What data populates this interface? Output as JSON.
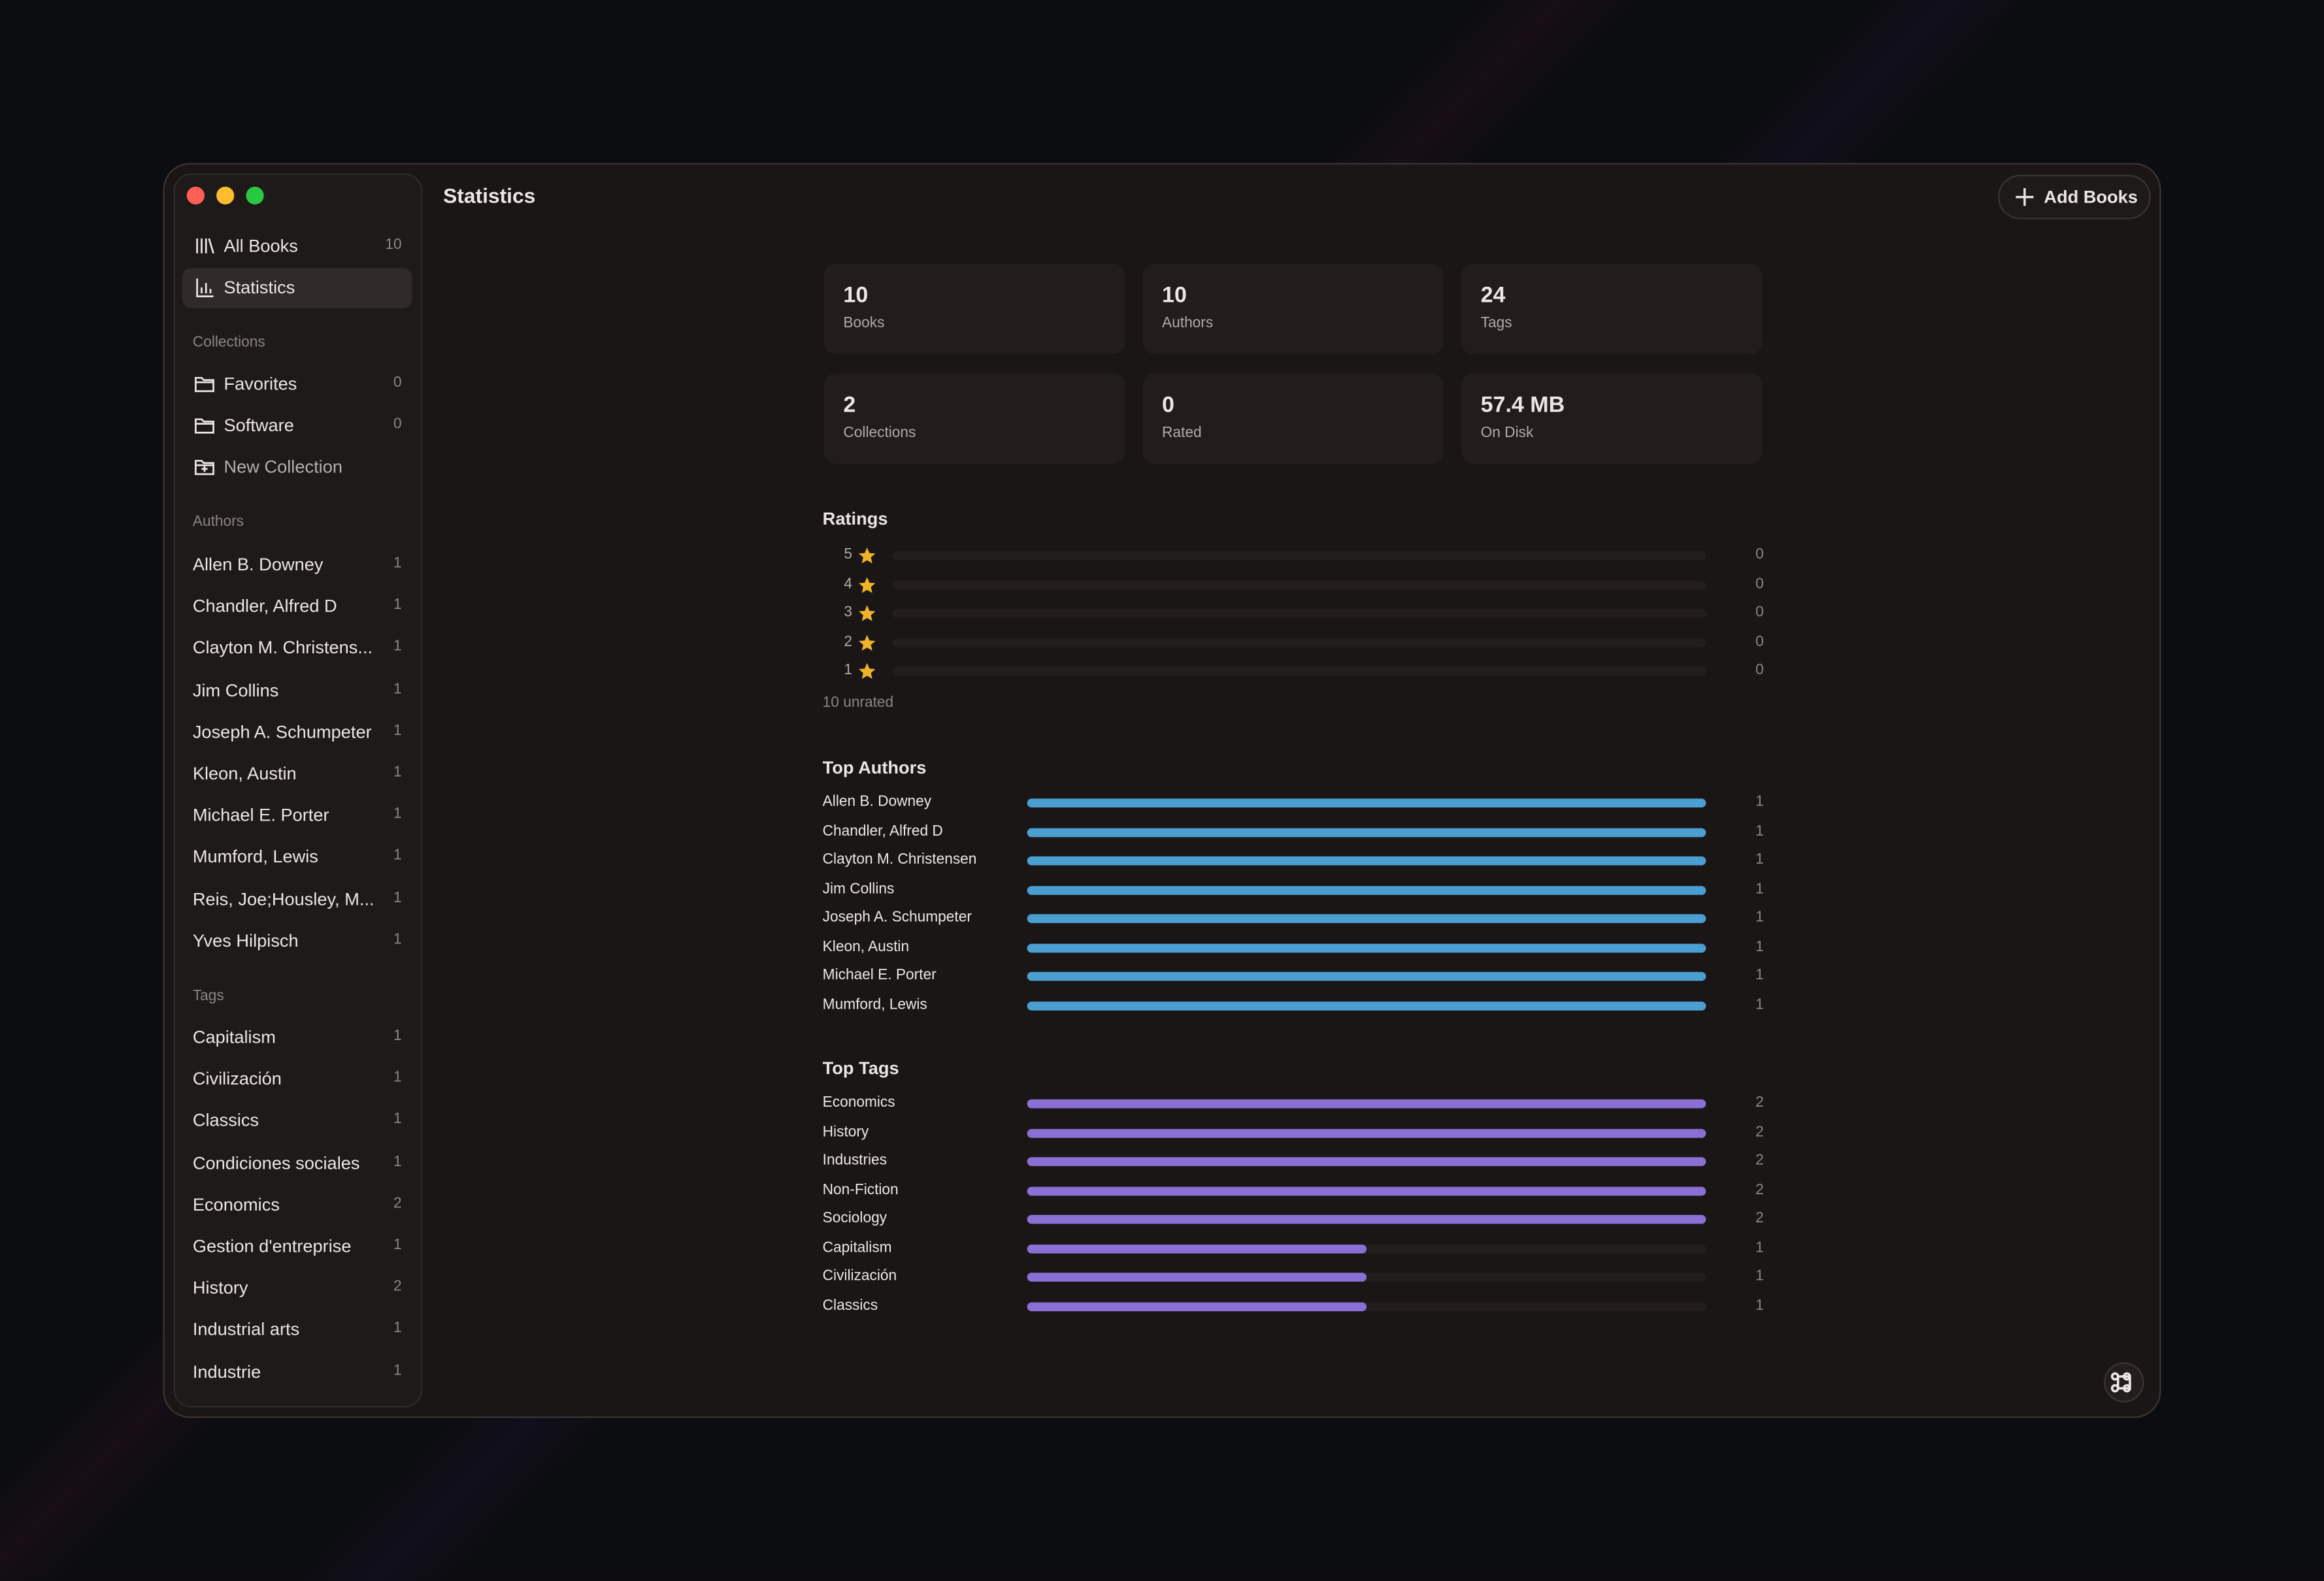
{
  "window": {
    "title": "Statistics",
    "add_button": "Add Books"
  },
  "sidebar": {
    "nav": [
      {
        "label": "All Books",
        "count": 10
      },
      {
        "label": "Statistics"
      }
    ],
    "collections": {
      "heading": "Collections",
      "items": [
        {
          "label": "Favorites",
          "count": 0
        },
        {
          "label": "Software",
          "count": 0
        }
      ],
      "new": "New Collection"
    },
    "authors": {
      "heading": "Authors",
      "items": [
        {
          "label": "Allen B. Downey",
          "count": 1
        },
        {
          "label": "Chandler, Alfred D",
          "count": 1
        },
        {
          "label": "Clayton M. Christens...",
          "count": 1
        },
        {
          "label": "Jim Collins",
          "count": 1
        },
        {
          "label": "Joseph A. Schumpeter",
          "count": 1
        },
        {
          "label": "Kleon, Austin",
          "count": 1
        },
        {
          "label": "Michael E. Porter",
          "count": 1
        },
        {
          "label": "Mumford, Lewis",
          "count": 1
        },
        {
          "label": "Reis, Joe;Housley, M...",
          "count": 1
        },
        {
          "label": "Yves Hilpisch",
          "count": 1
        }
      ]
    },
    "tags": {
      "heading": "Tags",
      "items": [
        {
          "label": "Capitalism",
          "count": 1
        },
        {
          "label": "Civilización",
          "count": 1
        },
        {
          "label": "Classics",
          "count": 1
        },
        {
          "label": "Condiciones sociales",
          "count": 1
        },
        {
          "label": "Economics",
          "count": 2
        },
        {
          "label": "Gestion d'entreprise",
          "count": 1
        },
        {
          "label": "History",
          "count": 2
        },
        {
          "label": "Industrial arts",
          "count": 1
        },
        {
          "label": "Industrie",
          "count": 1
        }
      ]
    }
  },
  "stats": [
    {
      "value": 10,
      "label": "Books"
    },
    {
      "value": 10,
      "label": "Authors"
    },
    {
      "value": 24,
      "label": "Tags"
    },
    {
      "value": 2,
      "label": "Collections"
    },
    {
      "value": 0,
      "label": "Rated"
    },
    {
      "value": "57.4 MB",
      "label": "On Disk"
    }
  ],
  "ratings": {
    "heading": "Ratings",
    "rows": [
      {
        "stars": 5,
        "count": 0
      },
      {
        "stars": 4,
        "count": 0
      },
      {
        "stars": 3,
        "count": 0
      },
      {
        "stars": 2,
        "count": 0
      },
      {
        "stars": 1,
        "count": 0
      }
    ],
    "unrated": "10 unrated"
  },
  "top_authors": {
    "heading": "Top Authors",
    "rows": [
      {
        "name": "Allen B. Downey",
        "count": 1
      },
      {
        "name": "Chandler, Alfred D",
        "count": 1
      },
      {
        "name": "Clayton M. Christensen",
        "count": 1
      },
      {
        "name": "Jim Collins",
        "count": 1
      },
      {
        "name": "Joseph A. Schumpeter",
        "count": 1
      },
      {
        "name": "Kleon, Austin",
        "count": 1
      },
      {
        "name": "Michael E. Porter",
        "count": 1
      },
      {
        "name": "Mumford, Lewis",
        "count": 1
      }
    ]
  },
  "top_tags": {
    "heading": "Top Tags",
    "rows": [
      {
        "name": "Economics",
        "count": 2
      },
      {
        "name": "History",
        "count": 2
      },
      {
        "name": "Industries",
        "count": 2
      },
      {
        "name": "Non-Fiction",
        "count": 2
      },
      {
        "name": "Sociology",
        "count": 2
      },
      {
        "name": "Capitalism",
        "count": 1
      },
      {
        "name": "Civilización",
        "count": 1
      },
      {
        "name": "Classics",
        "count": 1
      }
    ]
  }
}
